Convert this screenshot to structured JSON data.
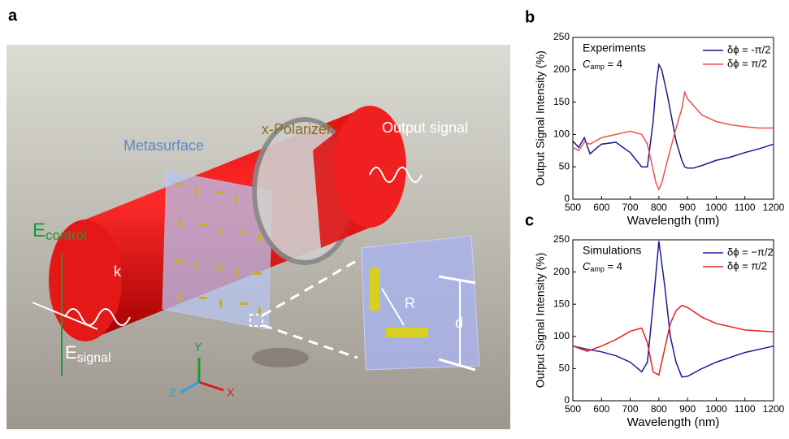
{
  "panel_labels": [
    "a",
    "b",
    "c"
  ],
  "scene": {
    "metasurface": "Metasurface",
    "polarizer": "x-Polarizer",
    "output": "Output signal",
    "k": "k",
    "r": "R",
    "d": "d",
    "y": "Y",
    "z": "Z",
    "x": "X",
    "e_control": [
      "E",
      "control"
    ],
    "e_signal": [
      "E",
      "signal"
    ]
  },
  "chart_data": [
    {
      "type": "line",
      "annotation": "Experiments",
      "annotation_parts": [
        "C",
        "amp",
        " = 4"
      ],
      "xlabel": "Wavelength (nm)",
      "ylabel": "Output Signal Intensity (%)",
      "xlim": [
        500,
        1200
      ],
      "ylim": [
        0,
        250
      ],
      "xticks": [
        500,
        600,
        700,
        800,
        900,
        1000,
        1100,
        1200
      ],
      "yticks": [
        0,
        50,
        100,
        150,
        200,
        250
      ],
      "legend": "upper right",
      "x": [
        500,
        520,
        540,
        560,
        580,
        600,
        650,
        700,
        740,
        760,
        780,
        790,
        800,
        810,
        830,
        860,
        880,
        890,
        900,
        920,
        950,
        1000,
        1050,
        1100,
        1150,
        1200
      ],
      "series": [
        {
          "name": "δϕ = -π/2",
          "color": "#1a1a8c",
          "values": [
            90,
            80,
            95,
            70,
            78,
            85,
            88,
            72,
            50,
            50,
            120,
            175,
            208,
            200,
            160,
            90,
            60,
            50,
            48,
            48,
            52,
            60,
            65,
            72,
            78,
            85
          ]
        },
        {
          "name": "δϕ =  π/2",
          "color": "#f05050",
          "values": [
            80,
            75,
            88,
            85,
            90,
            95,
            100,
            105,
            100,
            85,
            45,
            25,
            15,
            25,
            60,
            110,
            140,
            165,
            155,
            145,
            130,
            120,
            115,
            112,
            110,
            110
          ]
        }
      ]
    },
    {
      "type": "line",
      "annotation": "Simulations",
      "annotation_parts": [
        "C",
        "amp",
        " = 4"
      ],
      "xlabel": "Wavelength (nm)",
      "ylabel": "Output Signal Intensity (%)",
      "xlim": [
        500,
        1200
      ],
      "ylim": [
        0,
        250
      ],
      "xticks": [
        500,
        600,
        700,
        800,
        900,
        1000,
        1100,
        1200
      ],
      "yticks": [
        0,
        50,
        100,
        150,
        200,
        250
      ],
      "legend": "upper right",
      "x": [
        500,
        550,
        600,
        650,
        700,
        740,
        760,
        780,
        800,
        820,
        840,
        860,
        880,
        900,
        950,
        1000,
        1100,
        1200
      ],
      "series": [
        {
          "name": "δϕ = −π/2",
          "color": "#1a1aa0",
          "values": [
            85,
            80,
            76,
            70,
            60,
            45,
            60,
            150,
            248,
            180,
            100,
            60,
            37,
            38,
            50,
            60,
            75,
            85
          ]
        },
        {
          "name": "δϕ = π/2",
          "color": "#e82020",
          "values": [
            85,
            77,
            85,
            95,
            108,
            113,
            90,
            45,
            40,
            80,
            120,
            140,
            148,
            145,
            130,
            120,
            110,
            107
          ]
        }
      ]
    }
  ]
}
